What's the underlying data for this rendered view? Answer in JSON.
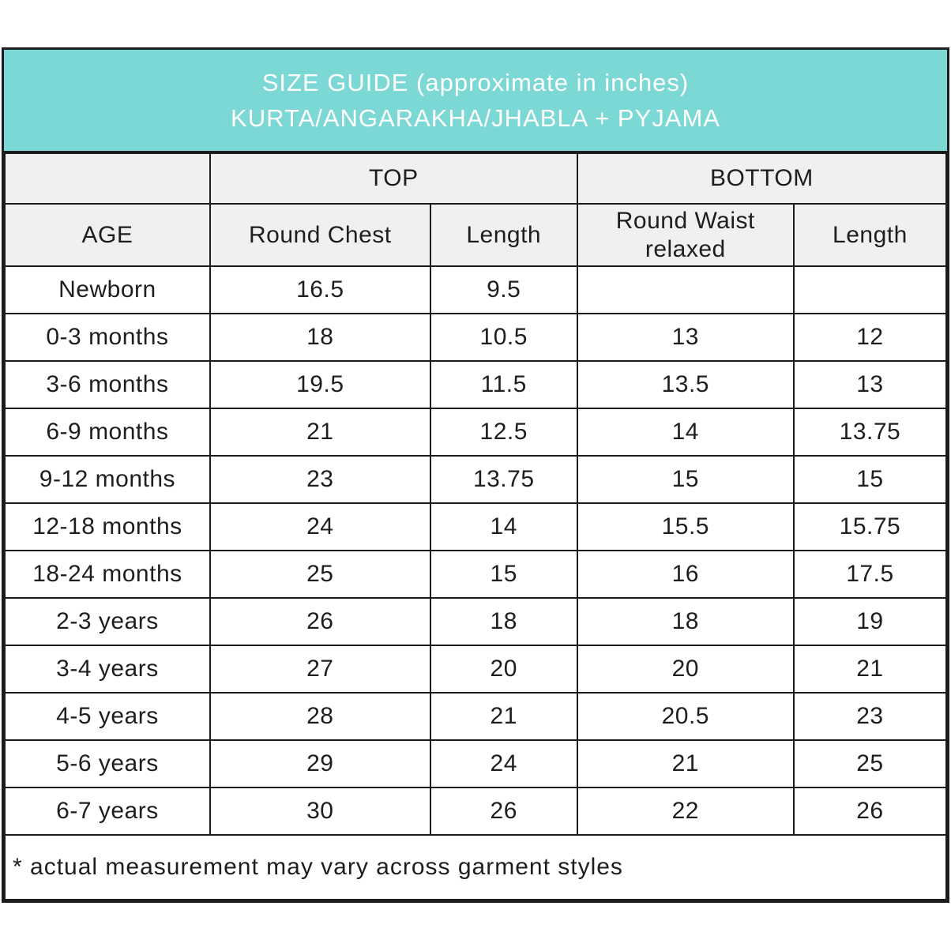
{
  "banner": {
    "title_line1": "SIZE GUIDE (approximate in inches)",
    "title_line2": "KURTA/ANGARAKHA/JHABLA + PYJAMA",
    "background_color": "#7bd8d4",
    "text_color": "#ffffff"
  },
  "table": {
    "group_headers": {
      "top": "TOP",
      "bottom": "BOTTOM"
    },
    "column_headers": {
      "age": "AGE",
      "round_chest": "Round Chest",
      "top_length": "Length",
      "round_waist": "Round Waist relaxed",
      "bottom_length": "Length"
    },
    "rows": [
      {
        "age": "Newborn",
        "values": [
          "16.5",
          "9.5",
          "",
          ""
        ]
      },
      {
        "age": "0-3 months",
        "values": [
          "18",
          "10.5",
          "13",
          "12"
        ]
      },
      {
        "age": "3-6 months",
        "values": [
          "19.5",
          "11.5",
          "13.5",
          "13"
        ]
      },
      {
        "age": "6-9 months",
        "values": [
          "21",
          "12.5",
          "14",
          "13.75"
        ]
      },
      {
        "age": "9-12 months",
        "values": [
          "23",
          "13.75",
          "15",
          "15"
        ]
      },
      {
        "age": "12-18 months",
        "values": [
          "24",
          "14",
          "15.5",
          "15.75"
        ]
      },
      {
        "age": "18-24 months",
        "values": [
          "25",
          "15",
          "16",
          "17.5"
        ]
      },
      {
        "age": "2-3 years",
        "values": [
          "26",
          "18",
          "18",
          "19"
        ]
      },
      {
        "age": "3-4 years",
        "values": [
          "27",
          "20",
          "20",
          "21"
        ]
      },
      {
        "age": "4-5 years",
        "values": [
          "28",
          "21",
          "20.5",
          "23"
        ]
      },
      {
        "age": "5-6 years",
        "values": [
          "29",
          "24",
          "21",
          "25"
        ]
      },
      {
        "age": "6-7 years",
        "values": [
          "30",
          "26",
          "22",
          "26"
        ]
      }
    ],
    "footnote": "* actual measurement may vary across garment styles",
    "colors": {
      "header_background": "#f0f0f0",
      "border": "#1c1c1c",
      "row_background": "#ffffff",
      "text": "#1e1e1e"
    }
  }
}
